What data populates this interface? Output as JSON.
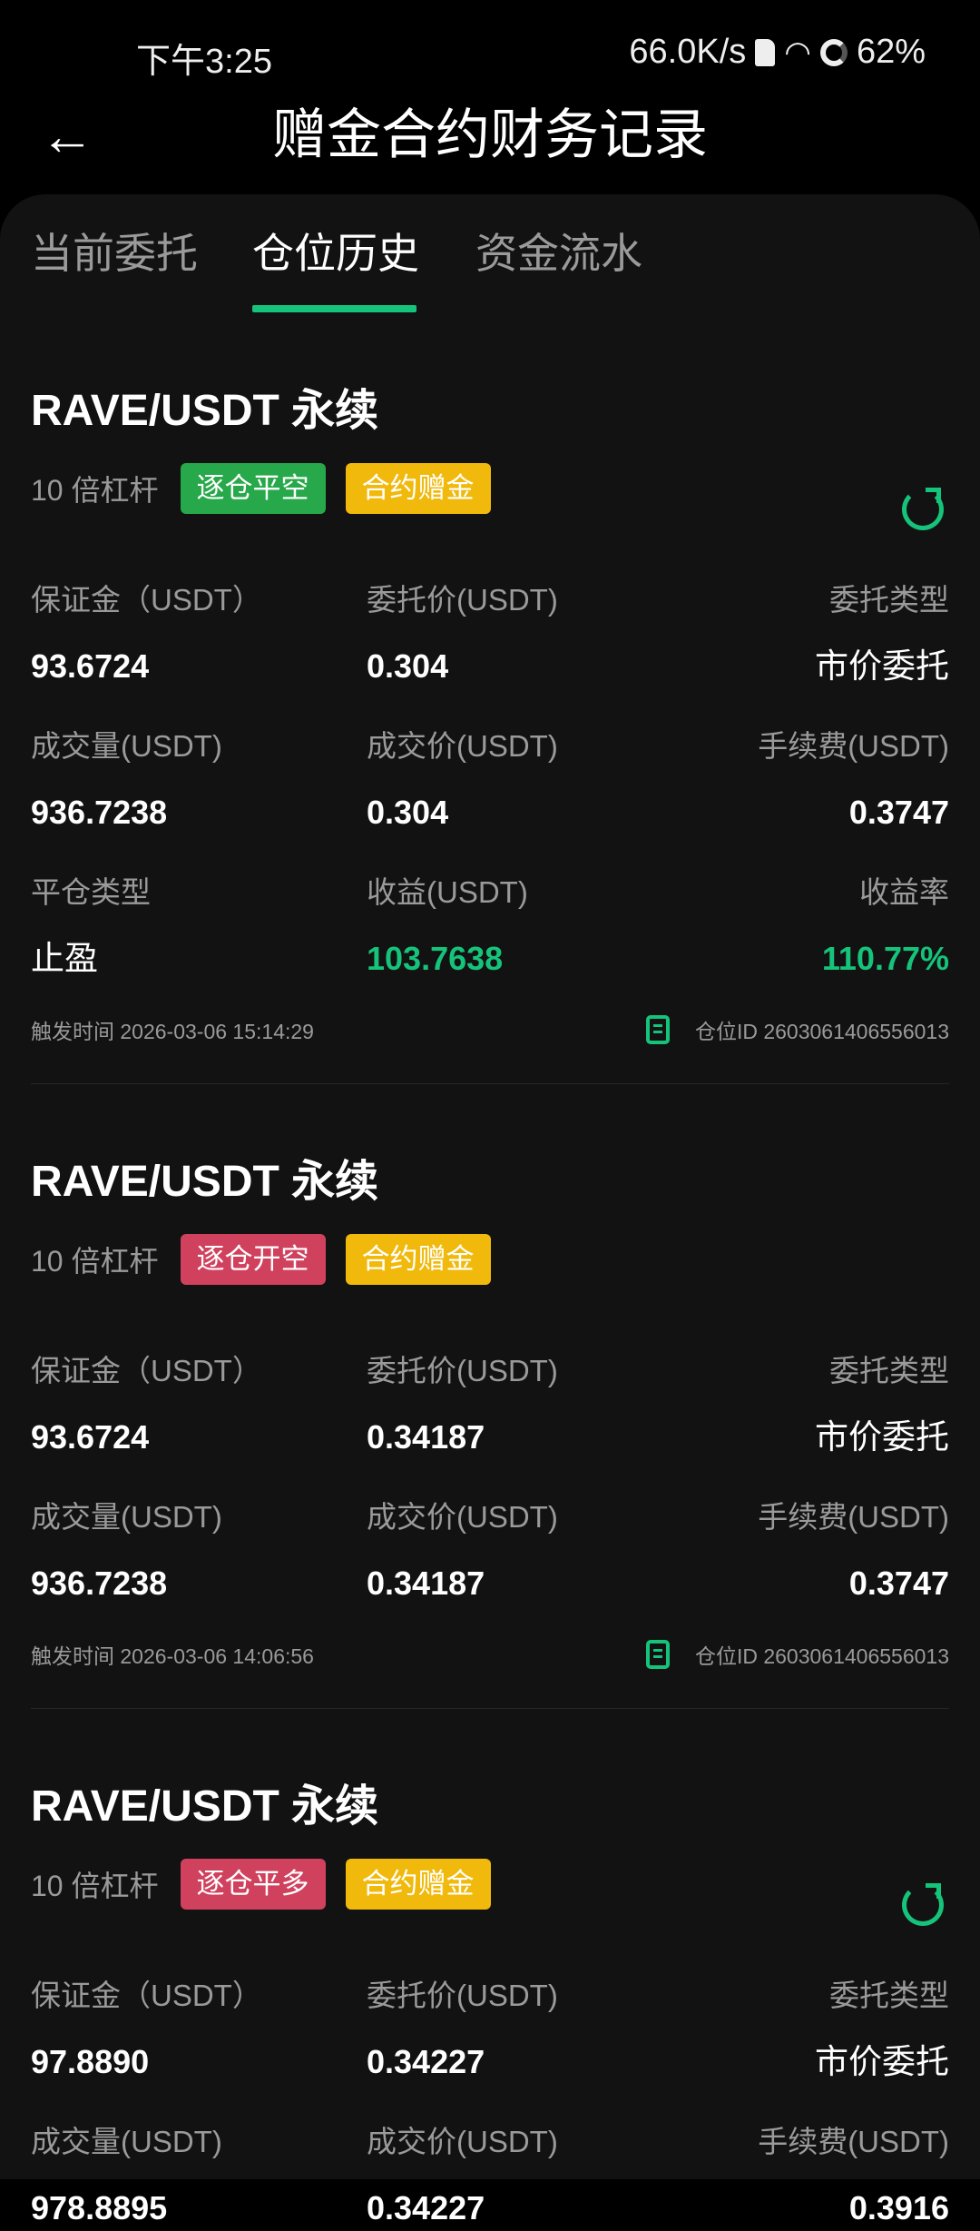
{
  "status_bar": {
    "time": "下午3:25",
    "speed": "66.0K/s",
    "battery": "62%"
  },
  "header": {
    "title": "赠金合约财务记录"
  },
  "tabs": [
    {
      "label": "当前委托"
    },
    {
      "label": "仓位历史",
      "active": true
    },
    {
      "label": "资金流水"
    }
  ],
  "colors": {
    "accent": "#16c37a",
    "badge_green": "#27a84a",
    "badge_red": "#d0415e",
    "badge_yellow": "#f0b90b"
  },
  "cards": [
    {
      "title": "RAVE/USDT 永续",
      "leverage": "10 倍杠杆",
      "badge": "逐仓平空",
      "badge_color": "#27a84a",
      "tag": "合约赠金",
      "share": true,
      "rows": [
        [
          {
            "label": "保证金（USDT）",
            "value": "93.6724"
          },
          {
            "label": "委托价(USDT)",
            "value": "0.304"
          },
          {
            "label": "委托类型",
            "value": "市价委托"
          }
        ],
        [
          {
            "label": "成交量(USDT)",
            "value": "936.7238"
          },
          {
            "label": "成交价(USDT)",
            "value": "0.304"
          },
          {
            "label": "手续费(USDT)",
            "value": "0.3747"
          }
        ],
        [
          {
            "label": "平仓类型",
            "value": "止盈"
          },
          {
            "label": "收益(USDT)",
            "value": "103.7638",
            "green": true
          },
          {
            "label": "收益率",
            "value": "110.77%",
            "green": true
          }
        ]
      ],
      "trigger_label": "触发时间",
      "trigger_time": "2026-03-06 15:14:29",
      "position_id_label": "仓位ID",
      "position_id": "2603061406556013"
    },
    {
      "title": "RAVE/USDT 永续",
      "leverage": "10 倍杠杆",
      "badge": "逐仓开空",
      "badge_color": "#d0415e",
      "tag": "合约赠金",
      "share": false,
      "rows": [
        [
          {
            "label": "保证金（USDT）",
            "value": "93.6724"
          },
          {
            "label": "委托价(USDT)",
            "value": "0.34187"
          },
          {
            "label": "委托类型",
            "value": "市价委托"
          }
        ],
        [
          {
            "label": "成交量(USDT)",
            "value": "936.7238"
          },
          {
            "label": "成交价(USDT)",
            "value": "0.34187"
          },
          {
            "label": "手续费(USDT)",
            "value": "0.3747"
          }
        ]
      ],
      "trigger_label": "触发时间",
      "trigger_time": "2026-03-06 14:06:56",
      "position_id_label": "仓位ID",
      "position_id": "2603061406556013"
    },
    {
      "title": "RAVE/USDT 永续",
      "leverage": "10 倍杠杆",
      "badge": "逐仓平多",
      "badge_color": "#d0415e",
      "tag": "合约赠金",
      "share": true,
      "rows": [
        [
          {
            "label": "保证金（USDT）",
            "value": "97.8890"
          },
          {
            "label": "委托价(USDT)",
            "value": "0.34227"
          },
          {
            "label": "委托类型",
            "value": "市价委托"
          }
        ],
        [
          {
            "label": "成交量(USDT)",
            "value": "978.8895"
          },
          {
            "label": "成交价(USDT)",
            "value": "0.34227"
          },
          {
            "label": "手续费(USDT)",
            "value": "0.3916"
          }
        ]
      ]
    }
  ]
}
